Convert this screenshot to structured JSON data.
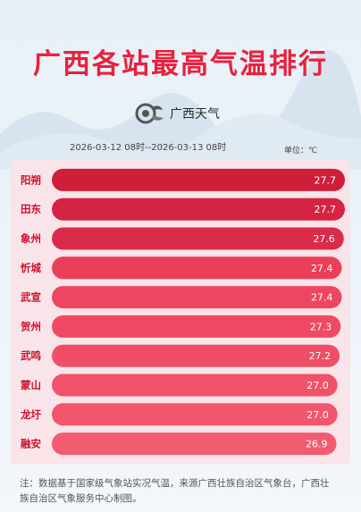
{
  "header": {
    "title": "广西各站最高气温排行",
    "logo_name": "广西天气",
    "date_range": "2026-03-12 08时--2026-03-13 08时",
    "unit": "单位：℃"
  },
  "chart_data": {
    "type": "bar",
    "orientation": "horizontal",
    "categories": [
      "阳朔",
      "田东",
      "象州",
      "忻城",
      "武宣",
      "贺州",
      "武鸣",
      "蒙山",
      "龙圩",
      "融安"
    ],
    "values": [
      27.7,
      27.7,
      27.6,
      27.4,
      27.4,
      27.3,
      27.2,
      27.0,
      27.0,
      26.9
    ],
    "value_labels": [
      "27.7",
      "27.7",
      "27.6",
      "27.4",
      "27.4",
      "27.3",
      "27.2",
      "27.0",
      "27.0",
      "26.9"
    ],
    "colors": [
      "#cf1e3a",
      "#d52443",
      "#db2b4a",
      "#ea3f59",
      "#ed4660",
      "#ee4a63",
      "#ef4e66",
      "#f05269",
      "#f1566c",
      "#f25b70"
    ],
    "label_color": "#d0102e",
    "panel_color": "#f9e4e9",
    "grid": false
  },
  "footer": {
    "note": "注：数据基于国家级气象站实况气温，来源广西壮族自治区气象台，广西壮族自治区气象服务中心制图。"
  }
}
